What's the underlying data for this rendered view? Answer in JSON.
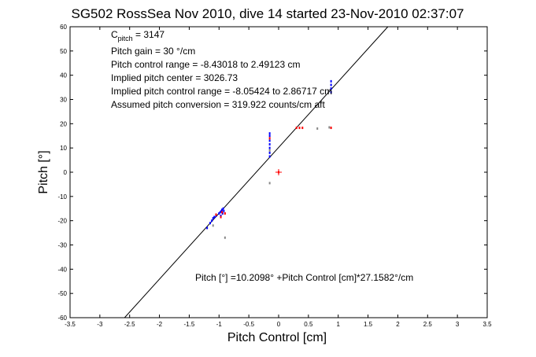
{
  "chart_data": {
    "type": "scatter",
    "title": "SG502 RossSea Nov 2010, dive 14 started 23-Nov-2010 02:37:07",
    "xlabel": "Pitch Control [cm]",
    "ylabel": "Pitch [°]",
    "xlim": [
      -3.5,
      3.5
    ],
    "ylim": [
      -60,
      60
    ],
    "xticks": [
      -3.5,
      -3,
      -2.5,
      -2,
      -1.5,
      -1,
      -0.5,
      0,
      0.5,
      1,
      1.5,
      2,
      2.5,
      3,
      3.5
    ],
    "xtick_labels": [
      "-3.5",
      "-3",
      "-2.5",
      "-2",
      "-1.5",
      "-1",
      "-0.5",
      "0",
      "0.5",
      "1",
      "1.5",
      "2",
      "2.5",
      "3",
      "3.5"
    ],
    "yticks": [
      -60,
      -50,
      -40,
      -30,
      -20,
      -10,
      0,
      10,
      20,
      30,
      40,
      50,
      60
    ],
    "ytick_labels": [
      "-60",
      "-50",
      "-40",
      "-30",
      "-20",
      "-10",
      "0",
      "10",
      "20",
      "30",
      "40",
      "50",
      "60"
    ],
    "grid": false,
    "fit_line": {
      "intercept": 10.2098,
      "slope": 27.1582
    },
    "annotations": {
      "c_pitch_main": "C",
      "c_pitch_sub": "pitch",
      "c_pitch_rest": " = 3147",
      "gain": "Pitch gain = 30 °/cm",
      "control_range": "Pitch control range = -8.43018 to 2.49123 cm",
      "implied_center": "Implied pitch center = 3026.73",
      "implied_range": "Implied pitch control range = -8.05424 to 2.86717 cm",
      "conversion": "Assumed pitch conversion = 319.922 counts/cm aft",
      "equation": "Pitch [°] =10.2098° +Pitch Control [cm]*27.1582°/cm"
    },
    "series": [
      {
        "color": "#0000ff",
        "points": [
          [
            -1.2,
            -23
          ],
          [
            -1.15,
            -21
          ],
          [
            -1.12,
            -20
          ],
          [
            -1.1,
            -19
          ],
          [
            -1.08,
            -18.5
          ],
          [
            -1.05,
            -18
          ],
          [
            -1.0,
            -17
          ],
          [
            -0.98,
            -16.5
          ],
          [
            -0.96,
            -16
          ],
          [
            -0.95,
            -15.5
          ],
          [
            -0.93,
            -15
          ],
          [
            -0.92,
            -16
          ],
          [
            -0.94,
            -17
          ],
          [
            -0.97,
            -18
          ],
          [
            -0.15,
            6.5
          ],
          [
            -0.15,
            8
          ],
          [
            -0.15,
            10
          ],
          [
            -0.15,
            11.5
          ],
          [
            -0.15,
            13
          ],
          [
            -0.15,
            15
          ],
          [
            -0.15,
            16
          ],
          [
            0.88,
            33
          ],
          [
            0.88,
            34.5
          ],
          [
            0.88,
            36
          ],
          [
            0.88,
            37.5
          ]
        ]
      },
      {
        "color": "#ff0000",
        "points": [
          [
            -1.05,
            -17.5
          ],
          [
            -0.97,
            -18.5
          ],
          [
            -0.9,
            -17
          ],
          [
            -0.95,
            -16.5
          ],
          [
            -0.15,
            14
          ],
          [
            0.3,
            18.3
          ],
          [
            0.35,
            18.3
          ],
          [
            0.4,
            18.3
          ],
          [
            0.88,
            18.3
          ],
          [
            0.0,
            0.0
          ]
        ]
      },
      {
        "color": "#888888",
        "points": [
          [
            -1.1,
            -22
          ],
          [
            -0.9,
            -27
          ],
          [
            -0.15,
            -4.5
          ],
          [
            0.65,
            18
          ],
          [
            0.85,
            18.5
          ],
          [
            -0.15,
            9
          ]
        ]
      }
    ],
    "fit_marker": {
      "color": "#ff0000",
      "x": 0.0,
      "y": 0.0
    }
  }
}
